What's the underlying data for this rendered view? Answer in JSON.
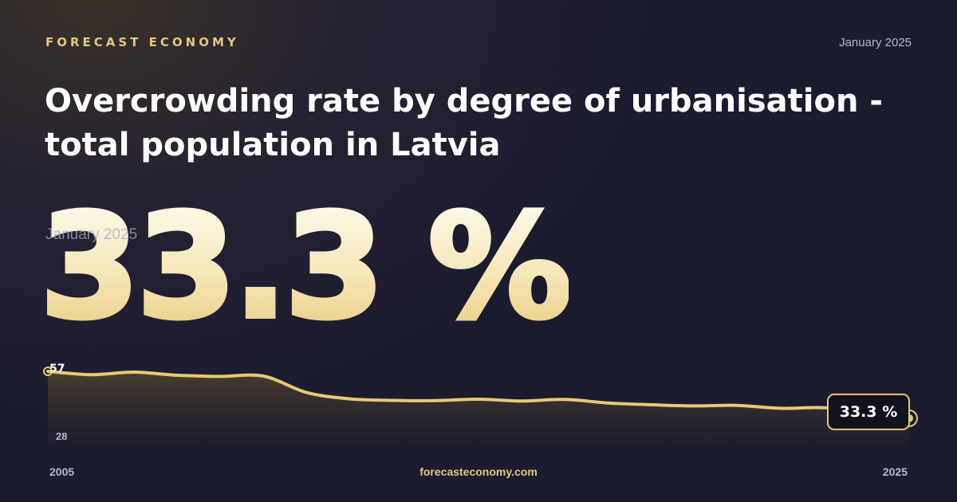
{
  "brand": "FORECAST ECONOMY",
  "date": "January 2025",
  "title": "Overcrowding rate by degree of urbanisation - total population in Latvia",
  "headline_value": "33.3 %",
  "footer": "forecasteconomy.com",
  "colors": {
    "accent": "#e8c774",
    "background": "#1b1b30",
    "text": "#ffffff"
  },
  "chart_data": {
    "type": "area",
    "x": [
      2005,
      2006,
      2007,
      2008,
      2009,
      2010,
      2011,
      2012,
      2013,
      2014,
      2015,
      2016,
      2017,
      2018,
      2019,
      2020,
      2021,
      2022,
      2023,
      2024,
      2025
    ],
    "values": [
      57.2,
      55.5,
      56.8,
      55.2,
      54.6,
      54.8,
      46.5,
      43.2,
      42.4,
      42.3,
      43.0,
      42.1,
      42.9,
      41.1,
      40.2,
      39.6,
      39.9,
      38.4,
      38.7,
      37.2,
      33.3
    ],
    "x_tick_labels": [
      "2005",
      "2025"
    ],
    "y_tick_labels": [
      "57",
      "28"
    ],
    "ylim": [
      28,
      57.2
    ],
    "end_label": "33.3 %",
    "grid": false,
    "legend": "none"
  }
}
